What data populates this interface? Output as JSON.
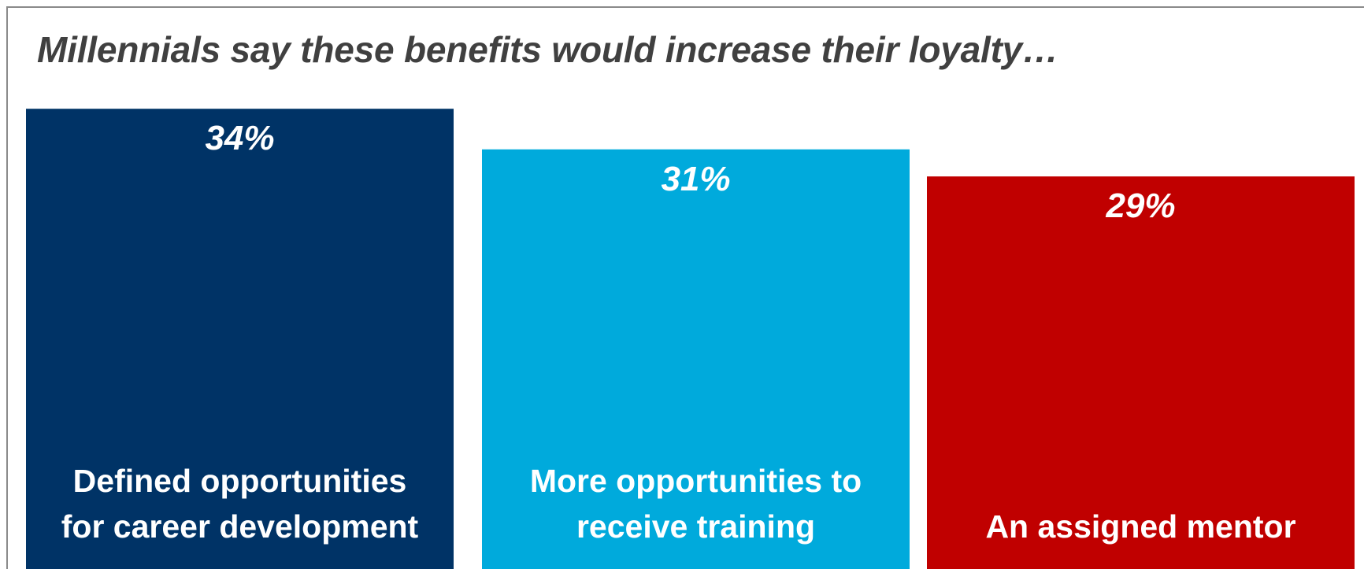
{
  "chart_data": {
    "type": "bar",
    "title": "Millennials say these benefits would increase their loyalty…",
    "categories": [
      "Defined opportunities for career development",
      "More opportunities to receive training",
      "An assigned mentor"
    ],
    "category_lines": [
      [
        "Defined opportunities",
        "for career development"
      ],
      [
        "More opportunities to",
        "receive training"
      ],
      [
        "An assigned mentor"
      ]
    ],
    "values": [
      34,
      31,
      29
    ],
    "value_labels": [
      "34%",
      "31%",
      "29%"
    ],
    "unit": "%",
    "colors": [
      "#003366",
      "#00AADC",
      "#C00000"
    ],
    "grid": false,
    "legend": "none"
  }
}
